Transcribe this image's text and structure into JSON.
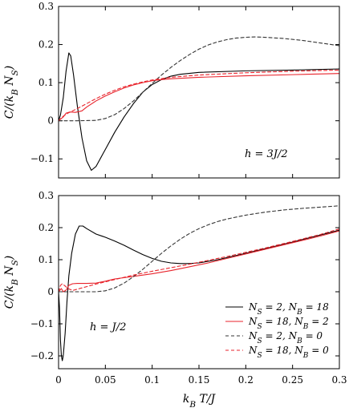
{
  "chart_data": [
    {
      "type": "line",
      "panel": "top",
      "ylabel": "C/(k_B N_S)",
      "xlabel": "",
      "annotation": "h = 3J/2",
      "xlim": [
        0,
        0.3
      ],
      "ylim": [
        -0.15,
        0.3
      ],
      "x_ticks": [
        0,
        0.05,
        0.1,
        0.15,
        0.2,
        0.25,
        0.3
      ],
      "y_ticks": [
        -0.1,
        0,
        0.1,
        0.2,
        0.3
      ],
      "y_tick_labels": [
        "−0.1",
        "0",
        "0.1",
        "0.2",
        "0.3"
      ],
      "series": [
        {
          "name": "N_S = 2, N_B = 18",
          "color": "#000000",
          "dash": "solid",
          "points": [
            [
              0,
              0
            ],
            [
              0.002,
              0.015
            ],
            [
              0.005,
              0.06
            ],
            [
              0.008,
              0.13
            ],
            [
              0.011,
              0.178
            ],
            [
              0.013,
              0.17
            ],
            [
              0.016,
              0.12
            ],
            [
              0.02,
              0.04
            ],
            [
              0.025,
              -0.045
            ],
            [
              0.03,
              -0.105
            ],
            [
              0.035,
              -0.13
            ],
            [
              0.04,
              -0.12
            ],
            [
              0.05,
              -0.075
            ],
            [
              0.06,
              -0.03
            ],
            [
              0.07,
              0.01
            ],
            [
              0.08,
              0.045
            ],
            [
              0.09,
              0.075
            ],
            [
              0.1,
              0.095
            ],
            [
              0.11,
              0.108
            ],
            [
              0.12,
              0.117
            ],
            [
              0.13,
              0.122
            ],
            [
              0.15,
              0.127
            ],
            [
              0.2,
              0.131
            ],
            [
              0.25,
              0.133
            ],
            [
              0.3,
              0.136
            ]
          ]
        },
        {
          "name": "N_S = 18, N_B = 2",
          "color": "#e8232b",
          "dash": "solid",
          "points": [
            [
              0,
              0
            ],
            [
              0.005,
              0.01
            ],
            [
              0.008,
              0.02
            ],
            [
              0.012,
              0.023
            ],
            [
              0.018,
              0.022
            ],
            [
              0.025,
              0.026
            ],
            [
              0.03,
              0.036
            ],
            [
              0.04,
              0.052
            ],
            [
              0.05,
              0.065
            ],
            [
              0.06,
              0.076
            ],
            [
              0.07,
              0.086
            ],
            [
              0.08,
              0.094
            ],
            [
              0.09,
              0.1
            ],
            [
              0.1,
              0.105
            ],
            [
              0.11,
              0.108
            ],
            [
              0.12,
              0.11
            ],
            [
              0.15,
              0.114
            ],
            [
              0.2,
              0.118
            ],
            [
              0.25,
              0.121
            ],
            [
              0.3,
              0.124
            ]
          ]
        },
        {
          "name": "N_S = 2, N_B = 0",
          "color": "#333333",
          "dash": "dashed",
          "points": [
            [
              0,
              0
            ],
            [
              0.02,
              0
            ],
            [
              0.04,
              0.001
            ],
            [
              0.05,
              0.006
            ],
            [
              0.06,
              0.016
            ],
            [
              0.07,
              0.032
            ],
            [
              0.08,
              0.052
            ],
            [
              0.09,
              0.075
            ],
            [
              0.1,
              0.098
            ],
            [
              0.11,
              0.12
            ],
            [
              0.12,
              0.14
            ],
            [
              0.13,
              0.158
            ],
            [
              0.14,
              0.174
            ],
            [
              0.15,
              0.188
            ],
            [
              0.16,
              0.199
            ],
            [
              0.17,
              0.207
            ],
            [
              0.18,
              0.213
            ],
            [
              0.19,
              0.217
            ],
            [
              0.2,
              0.219
            ],
            [
              0.21,
              0.22
            ],
            [
              0.22,
              0.219
            ],
            [
              0.24,
              0.216
            ],
            [
              0.26,
              0.211
            ],
            [
              0.28,
              0.204
            ],
            [
              0.3,
              0.197
            ]
          ]
        },
        {
          "name": "N_S = 18, N_B = 0",
          "color": "#e8232b",
          "dash": "dashed",
          "points": [
            [
              0,
              0
            ],
            [
              0.005,
              0.012
            ],
            [
              0.01,
              0.02
            ],
            [
              0.02,
              0.032
            ],
            [
              0.03,
              0.045
            ],
            [
              0.04,
              0.058
            ],
            [
              0.05,
              0.07
            ],
            [
              0.06,
              0.08
            ],
            [
              0.07,
              0.089
            ],
            [
              0.08,
              0.096
            ],
            [
              0.09,
              0.102
            ],
            [
              0.1,
              0.107
            ],
            [
              0.12,
              0.114
            ],
            [
              0.15,
              0.12
            ],
            [
              0.2,
              0.126
            ],
            [
              0.25,
              0.13
            ],
            [
              0.3,
              0.133
            ]
          ]
        }
      ]
    },
    {
      "type": "line",
      "panel": "bottom",
      "ylabel": "C/(k_B N_S)",
      "xlabel": "k_B T/J",
      "annotation": "h = J/2",
      "xlim": [
        0,
        0.3
      ],
      "ylim": [
        -0.24,
        0.3
      ],
      "x_ticks": [
        0,
        0.05,
        0.1,
        0.15,
        0.2,
        0.25,
        0.3
      ],
      "x_tick_labels": [
        "0",
        "0.05",
        "0.1",
        "0.15",
        "0.2",
        "0.25",
        "0.3"
      ],
      "y_ticks": [
        -0.2,
        -0.1,
        0,
        0.1,
        0.2,
        0.3
      ],
      "y_tick_labels": [
        "−0.2",
        "−0.1",
        "0",
        "0.1",
        "0.2",
        "0.3"
      ],
      "legend_position": "bottom-right",
      "series": [
        {
          "name": "N_S = 2, N_B = 18",
          "color": "#000000",
          "dash": "solid",
          "points": [
            [
              0,
              0
            ],
            [
              0.001,
              -0.05
            ],
            [
              0.002,
              -0.15
            ],
            [
              0.003,
              -0.2
            ],
            [
              0.004,
              -0.215
            ],
            [
              0.005,
              -0.2
            ],
            [
              0.007,
              -0.13
            ],
            [
              0.009,
              -0.03
            ],
            [
              0.011,
              0.05
            ],
            [
              0.014,
              0.12
            ],
            [
              0.018,
              0.18
            ],
            [
              0.022,
              0.205
            ],
            [
              0.026,
              0.205
            ],
            [
              0.03,
              0.197
            ],
            [
              0.04,
              0.18
            ],
            [
              0.05,
              0.17
            ],
            [
              0.06,
              0.158
            ],
            [
              0.07,
              0.145
            ],
            [
              0.08,
              0.13
            ],
            [
              0.09,
              0.116
            ],
            [
              0.1,
              0.104
            ],
            [
              0.11,
              0.095
            ],
            [
              0.12,
              0.09
            ],
            [
              0.13,
              0.088
            ],
            [
              0.14,
              0.088
            ],
            [
              0.15,
              0.09
            ],
            [
              0.17,
              0.1
            ],
            [
              0.2,
              0.12
            ],
            [
              0.25,
              0.155
            ],
            [
              0.3,
              0.192
            ]
          ]
        },
        {
          "name": "N_S = 18, N_B = 2",
          "color": "#e8232b",
          "dash": "solid",
          "points": [
            [
              0,
              0
            ],
            [
              0.003,
              0.01
            ],
            [
              0.005,
              0.0
            ],
            [
              0.008,
              0.005
            ],
            [
              0.011,
              0.02
            ],
            [
              0.015,
              0.025
            ],
            [
              0.02,
              0.026
            ],
            [
              0.03,
              0.026
            ],
            [
              0.04,
              0.027
            ],
            [
              0.05,
              0.033
            ],
            [
              0.06,
              0.04
            ],
            [
              0.08,
              0.048
            ],
            [
              0.1,
              0.056
            ],
            [
              0.12,
              0.066
            ],
            [
              0.14,
              0.078
            ],
            [
              0.16,
              0.09
            ],
            [
              0.18,
              0.104
            ],
            [
              0.2,
              0.118
            ],
            [
              0.22,
              0.132
            ],
            [
              0.25,
              0.153
            ],
            [
              0.28,
              0.174
            ],
            [
              0.3,
              0.19
            ]
          ]
        },
        {
          "name": "N_S = 2, N_B = 0",
          "color": "#333333",
          "dash": "dashed",
          "points": [
            [
              0,
              0
            ],
            [
              0.04,
              0
            ],
            [
              0.05,
              0.003
            ],
            [
              0.06,
              0.012
            ],
            [
              0.07,
              0.027
            ],
            [
              0.08,
              0.047
            ],
            [
              0.09,
              0.07
            ],
            [
              0.1,
              0.095
            ],
            [
              0.11,
              0.12
            ],
            [
              0.12,
              0.143
            ],
            [
              0.13,
              0.164
            ],
            [
              0.14,
              0.182
            ],
            [
              0.15,
              0.197
            ],
            [
              0.16,
              0.209
            ],
            [
              0.17,
              0.219
            ],
            [
              0.18,
              0.227
            ],
            [
              0.2,
              0.239
            ],
            [
              0.22,
              0.248
            ],
            [
              0.24,
              0.255
            ],
            [
              0.26,
              0.26
            ],
            [
              0.28,
              0.264
            ],
            [
              0.3,
              0.268
            ]
          ]
        },
        {
          "name": "N_S = 18, N_B = 0",
          "color": "#e8232b",
          "dash": "dashed",
          "points": [
            [
              0,
              0
            ],
            [
              0.002,
              0.02
            ],
            [
              0.004,
              0.025
            ],
            [
              0.007,
              0.018
            ],
            [
              0.01,
              0.01
            ],
            [
              0.015,
              0.004
            ],
            [
              0.02,
              0.008
            ],
            [
              0.03,
              0.016
            ],
            [
              0.04,
              0.024
            ],
            [
              0.06,
              0.038
            ],
            [
              0.08,
              0.052
            ],
            [
              0.1,
              0.064
            ],
            [
              0.12,
              0.075
            ],
            [
              0.14,
              0.086
            ],
            [
              0.16,
              0.098
            ],
            [
              0.18,
              0.11
            ],
            [
              0.2,
              0.123
            ],
            [
              0.22,
              0.136
            ],
            [
              0.25,
              0.157
            ],
            [
              0.28,
              0.179
            ],
            [
              0.3,
              0.196
            ]
          ]
        }
      ]
    }
  ]
}
